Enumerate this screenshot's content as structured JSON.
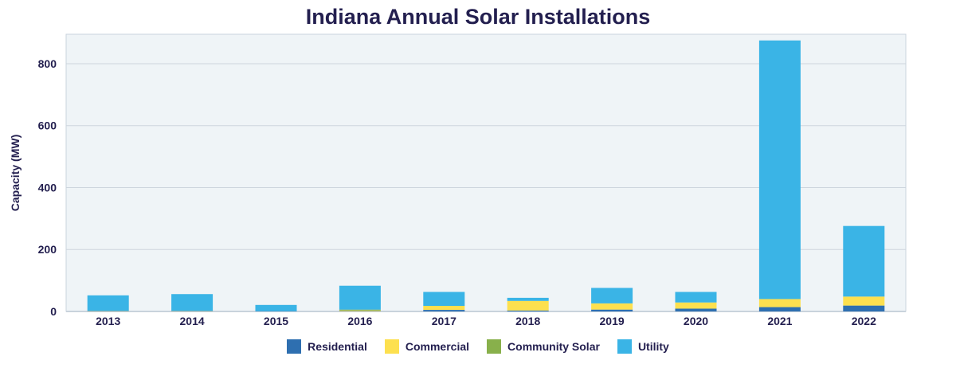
{
  "chart_data": {
    "type": "bar",
    "stacked": true,
    "title": "Indiana Annual Solar Installations",
    "xlabel": "",
    "ylabel": "Capacity (MW)",
    "ylim": [
      0,
      895
    ],
    "yticks": [
      0,
      200,
      400,
      600,
      800
    ],
    "grid": true,
    "legend_placement": "bottom",
    "categories": [
      "2013",
      "2014",
      "2015",
      "2016",
      "2017",
      "2018",
      "2019",
      "2020",
      "2021",
      "2022"
    ],
    "series": [
      {
        "name": "Residential",
        "color": "#2e6fb0",
        "values": [
          1,
          1,
          1,
          1,
          5,
          3,
          6,
          9,
          14,
          19
        ]
      },
      {
        "name": "Commercial",
        "color": "#fde04f",
        "values": [
          1,
          1,
          0,
          2,
          13,
          31,
          20,
          20,
          26,
          29
        ]
      },
      {
        "name": "Community Solar",
        "color": "#88b04b",
        "values": [
          0,
          0,
          0,
          3,
          0,
          0,
          0,
          0,
          0,
          0
        ]
      },
      {
        "name": "Utility",
        "color": "#3ab4e6",
        "values": [
          50,
          54,
          20,
          77,
          45,
          10,
          50,
          34,
          835,
          228
        ]
      }
    ]
  }
}
